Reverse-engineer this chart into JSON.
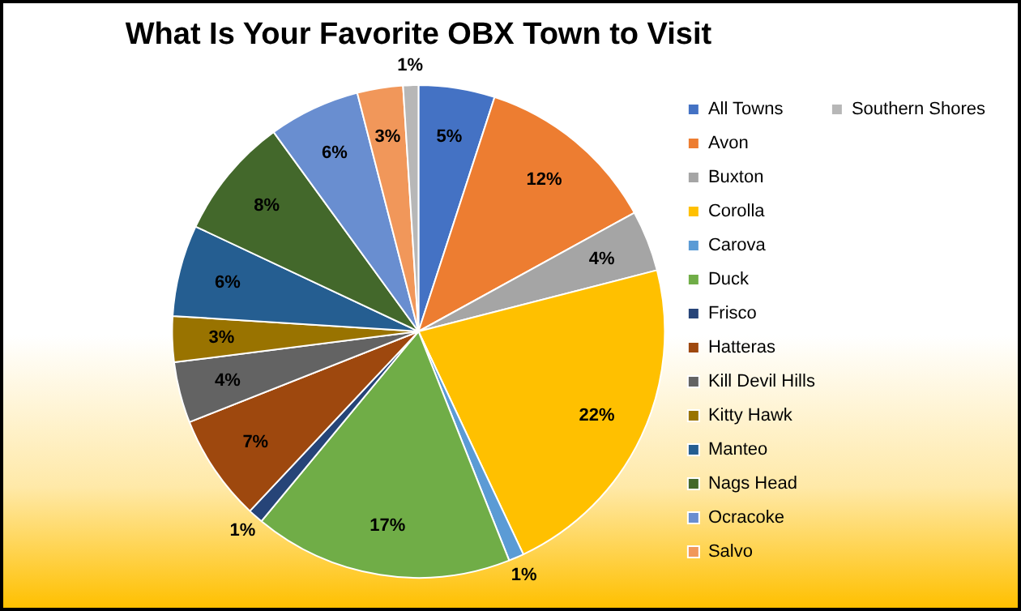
{
  "chart_data": {
    "type": "pie",
    "title": "What Is Your Favorite OBX Town to Visit",
    "categories": [
      "All Towns",
      "Avon",
      "Buxton",
      "Corolla",
      "Carova",
      "Duck",
      "Frisco",
      "Hatteras",
      "Kill Devil Hills",
      "Kitty Hawk",
      "Manteo",
      "Nags Head",
      "Ocracoke",
      "Salvo",
      "Southern Shores"
    ],
    "values": [
      5,
      12,
      4,
      22,
      1,
      17,
      1,
      7,
      4,
      3,
      6,
      8,
      6,
      3,
      1
    ],
    "colors": [
      "#4472c4",
      "#ed7d31",
      "#a5a5a5",
      "#ffc000",
      "#5b9bd5",
      "#70ad47",
      "#264478",
      "#9e480e",
      "#636363",
      "#997300",
      "#255e91",
      "#43682b",
      "#698ed0",
      "#f1975a",
      "#b7b7b7"
    ],
    "value_labels": [
      "5%",
      "12%",
      "4%",
      "22%",
      "1%",
      "17%",
      "1%",
      "7%",
      "4%",
      "3%",
      "6%",
      "8%",
      "6%",
      "3%",
      "1%"
    ],
    "legend": "right"
  }
}
